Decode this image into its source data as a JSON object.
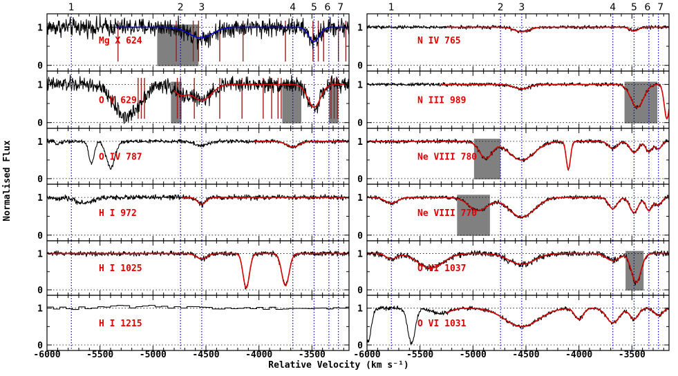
{
  "chart_data": {
    "type": "line",
    "xlabel": "Relative Velocity (km s⁻¹)",
    "ylabel": "Normalised Flux",
    "xlim": [
      -6000,
      -3150
    ],
    "ylim": [
      -0.15,
      1.35
    ],
    "x_ticks": [
      -6000,
      -5500,
      -5000,
      -4500,
      -4000,
      -3500
    ],
    "y_ticks": [
      0,
      1
    ],
    "grid": "dotted horizontal lines at flux 0 and 1",
    "colors": {
      "data": "#000000",
      "model": "#e00000",
      "alt_model": "#0000cc",
      "markers": "#0000cc",
      "blend": "#808080",
      "contam": "#9b1c1c",
      "label": "#e00000"
    },
    "components": [
      {
        "label": "1",
        "velocity": -5770
      },
      {
        "label": "2",
        "velocity": -4740
      },
      {
        "label": "3",
        "velocity": -4540
      },
      {
        "label": "4",
        "velocity": -3680
      },
      {
        "label": "5",
        "velocity": -3480
      },
      {
        "label": "6",
        "velocity": -3340
      },
      {
        "label": "7",
        "velocity": -3250
      }
    ],
    "panels": [
      {
        "column": "left",
        "row": 0,
        "ion": "Mg X 624",
        "continuum": 1.0,
        "noise": 0.18,
        "data_start": -6000,
        "model_start": -5350,
        "model_color": "#0000cc",
        "absorptions": [
          [
            -4550,
            0.28,
            110
          ],
          [
            -3480,
            0.38,
            50
          ]
        ],
        "blends": [
          [
            -4960,
            -4570
          ]
        ],
        "contaminants": [
          -5330,
          -4780,
          -4620,
          -4570,
          -4370,
          -4150,
          -3750,
          -3490,
          -3440,
          -3390,
          -3250,
          -3180
        ]
      },
      {
        "column": "left",
        "row": 1,
        "ion": "O V 629",
        "continuum": 1.0,
        "noise": 0.15,
        "data_start": -6000,
        "model_start": -4800,
        "model_color": "#e00000",
        "absorptions": [
          [
            -5250,
            0.85,
            120
          ],
          [
            -4740,
            0.25,
            60
          ],
          [
            -4540,
            0.42,
            90
          ],
          [
            -3480,
            0.6,
            60
          ]
        ],
        "blends": [
          [
            -4830,
            -4730
          ],
          [
            -3780,
            -3600
          ],
          [
            -3340,
            -3250
          ]
        ],
        "contaminants": [
          -5140,
          -5110,
          -5080,
          -4770,
          -4740,
          -4610,
          -4370,
          -4160,
          -3960,
          -3880,
          -3820,
          -3790,
          -3320,
          -3290,
          -3260
        ]
      },
      {
        "column": "left",
        "row": 2,
        "ion": "O IV 787",
        "continuum": 1.0,
        "noise": 0.04,
        "data_start": -6000,
        "model_start": -4050,
        "model_color": "#e00000",
        "absorptions": [
          [
            -5580,
            0.6,
            25
          ],
          [
            -5400,
            0.72,
            40
          ],
          [
            -5900,
            0.05,
            30
          ],
          [
            -4540,
            0.12,
            60
          ],
          [
            -3680,
            0.15,
            60
          ]
        ],
        "blends": [],
        "contaminants": []
      },
      {
        "column": "left",
        "row": 3,
        "ion": "H I 972",
        "continuum": 1.0,
        "noise": 0.05,
        "data_start": -6000,
        "model_start": -4720,
        "model_color": "#e00000",
        "absorptions": [
          [
            -5650,
            0.15,
            80
          ],
          [
            -5900,
            0.05,
            40
          ],
          [
            -4540,
            0.18,
            40
          ]
        ],
        "blends": [],
        "contaminants": []
      },
      {
        "column": "left",
        "row": 4,
        "ion": "H I 1025",
        "continuum": 1.0,
        "noise": 0.05,
        "data_start": -6000,
        "model_start": -6000,
        "model_color": "#e00000",
        "absorptions": [
          [
            -4120,
            0.95,
            30
          ],
          [
            -3750,
            0.88,
            35
          ],
          [
            -4540,
            0.15,
            50
          ]
        ],
        "blends": [],
        "contaminants": []
      },
      {
        "column": "left",
        "row": 5,
        "ion": "H I 1215",
        "continuum": 1.0,
        "noise": 0.0,
        "data_start": -6000,
        "model_start": null,
        "model_color": "#e00000",
        "absorptions": [],
        "blends": [],
        "contaminants": []
      },
      {
        "column": "right",
        "row": 0,
        "ion": "N IV 765",
        "continuum": 1.0,
        "noise": 0.035,
        "data_start": -6000,
        "model_start": -5250,
        "model_color": "#e00000",
        "absorptions": [
          [
            -4540,
            0.12,
            70
          ],
          [
            -3480,
            0.1,
            40
          ]
        ],
        "blends": [],
        "contaminants": []
      },
      {
        "column": "right",
        "row": 1,
        "ion": "N III 989",
        "continuum": 1.0,
        "noise": 0.035,
        "data_start": -6000,
        "model_start": -5300,
        "model_color": "#e00000",
        "absorptions": [
          [
            -4540,
            0.12,
            70
          ],
          [
            -3450,
            0.6,
            60
          ],
          [
            -3170,
            0.9,
            25
          ]
        ],
        "blends": [
          [
            -3570,
            -3260
          ]
        ],
        "contaminants": []
      },
      {
        "column": "right",
        "row": 2,
        "ion": "Ne VIII 780",
        "continuum": 1.0,
        "noise": 0.04,
        "data_start": -6000,
        "model_start": -6000,
        "model_color": "#e00000",
        "absorptions": [
          [
            -4880,
            0.45,
            60
          ],
          [
            -4540,
            0.5,
            120
          ],
          [
            -4100,
            0.75,
            20
          ],
          [
            -3680,
            0.2,
            40
          ],
          [
            -3480,
            0.3,
            40
          ],
          [
            -3340,
            0.28,
            30
          ],
          [
            -3250,
            0.2,
            30
          ]
        ],
        "blends": [
          [
            -4990,
            -4740
          ]
        ],
        "contaminants": []
      },
      {
        "column": "right",
        "row": 3,
        "ion": "Ne VIII 770",
        "continuum": 1.0,
        "noise": 0.04,
        "data_start": -6000,
        "model_start": -6000,
        "model_color": "#e00000",
        "absorptions": [
          [
            -5770,
            0.15,
            60
          ],
          [
            -4950,
            0.35,
            90
          ],
          [
            -4540,
            0.52,
            120
          ],
          [
            -3680,
            0.3,
            40
          ],
          [
            -3480,
            0.4,
            40
          ],
          [
            -3340,
            0.35,
            30
          ],
          [
            -3250,
            0.2,
            30
          ]
        ],
        "blends": [
          [
            -5150,
            -4840
          ]
        ],
        "contaminants": []
      },
      {
        "column": "right",
        "row": 4,
        "ion": "O VI 1037",
        "continuum": 1.0,
        "noise": 0.06,
        "data_start": -6000,
        "model_start": -6000,
        "model_color": "#e00000",
        "absorptions": [
          [
            -5400,
            0.4,
            120
          ],
          [
            -5770,
            0.15,
            50
          ],
          [
            -4540,
            0.3,
            120
          ],
          [
            -3680,
            0.2,
            60
          ],
          [
            -3460,
            0.8,
            45
          ]
        ],
        "blends": [
          [
            -3560,
            -3390
          ]
        ],
        "contaminants": []
      },
      {
        "column": "right",
        "row": 5,
        "ion": "O VI 1031",
        "continuum": 1.0,
        "noise": 0.04,
        "data_start": -6000,
        "model_start": -5250,
        "model_color": "#e00000",
        "absorptions": [
          [
            -5990,
            0.9,
            30
          ],
          [
            -5580,
            0.95,
            35
          ],
          [
            -5300,
            0.15,
            80
          ],
          [
            -4540,
            0.5,
            160
          ],
          [
            -4000,
            0.3,
            40
          ],
          [
            -3680,
            0.4,
            60
          ],
          [
            -3480,
            0.3,
            40
          ],
          [
            -3250,
            0.2,
            40
          ]
        ],
        "blends": [],
        "contaminants": []
      }
    ]
  }
}
